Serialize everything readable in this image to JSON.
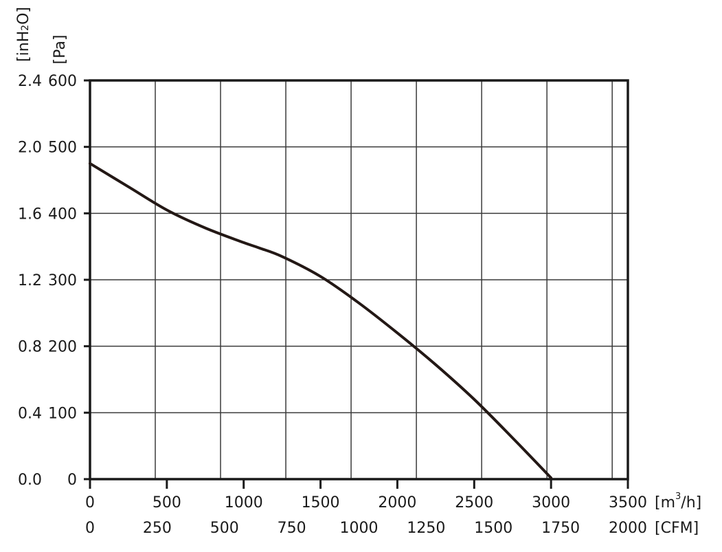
{
  "chart_data": {
    "type": "line",
    "title": "",
    "y_axes": [
      {
        "unit": "[Pa]",
        "range": [
          0,
          600
        ],
        "ticks": [
          "0",
          "100",
          "200",
          "300",
          "400",
          "500",
          "600"
        ]
      },
      {
        "unit": "[inH2O]",
        "ticks": [
          "0.0",
          "0.4",
          "0.8",
          "1.2",
          "1.6",
          "2.0",
          "2.4"
        ]
      }
    ],
    "x_axes": [
      {
        "unit": "[m³/h]",
        "range": [
          0,
          3500
        ],
        "ticks": [
          "0",
          "500",
          "1000",
          "1500",
          "2000",
          "2500",
          "3000",
          "3500"
        ]
      },
      {
        "unit": "[CFM]",
        "ticks": [
          "0",
          "250",
          "500",
          "750",
          "1000",
          "1250",
          "1500",
          "1750",
          "2000"
        ]
      }
    ],
    "xlim": [
      0,
      3500
    ],
    "ylim": [
      0,
      600
    ],
    "grid": true,
    "series": [
      {
        "x": [
          0,
          250,
          500,
          750,
          1000,
          1100,
          1250,
          1500,
          1750,
          2000,
          2250,
          2500,
          2750,
          3000
        ],
        "y": [
          475,
          440,
          405,
          378,
          356,
          348,
          335,
          305,
          265,
          220,
          172,
          120,
          62,
          2
        ]
      }
    ]
  }
}
